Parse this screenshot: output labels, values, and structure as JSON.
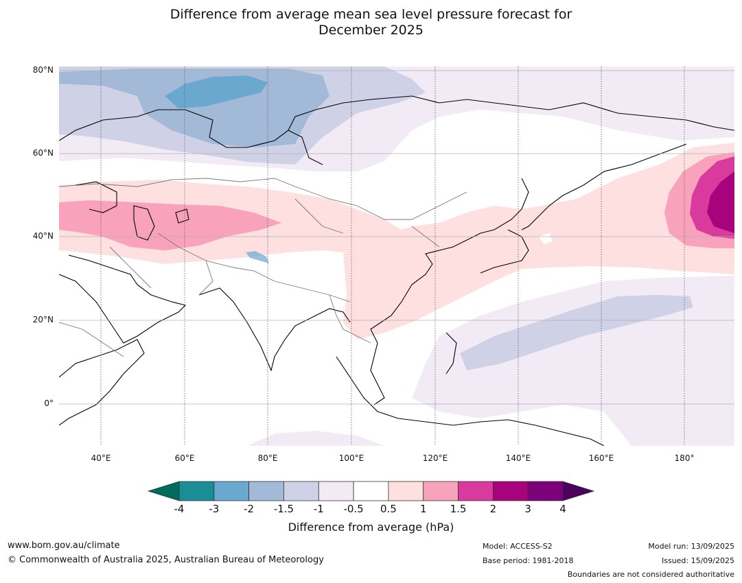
{
  "title_line1": "Difference from average mean sea level pressure forecast for",
  "title_line2": "December 2025",
  "map": {
    "lat_labels": [
      "80°N",
      "60°N",
      "40°N",
      "20°N",
      "0°"
    ],
    "lon_labels": [
      "40°E",
      "60°E",
      "80°E",
      "100°E",
      "120°E",
      "140°E",
      "160°E",
      "180°"
    ],
    "anomaly_regions": [
      {
        "name": "barents-sea-negative",
        "level": -2
      },
      {
        "name": "arctic-negative",
        "level": -1.5
      },
      {
        "name": "siberia-negative",
        "level": -1
      },
      {
        "name": "central-asia-positive",
        "level": 1
      },
      {
        "name": "caspian-positive",
        "level": 1.5
      },
      {
        "name": "china-positive",
        "level": 0.5
      },
      {
        "name": "north-pacific-positive",
        "level": 3
      },
      {
        "name": "western-pacific-negative",
        "level": -1.5
      },
      {
        "name": "tropical-pacific-negative",
        "level": -1
      }
    ]
  },
  "colorbar": {
    "ticks": [
      "-4",
      "-3",
      "-2",
      "-1.5",
      "-1",
      "-0.5",
      "0.5",
      "1",
      "1.5",
      "2",
      "3",
      "4"
    ],
    "colors": [
      "#1a8d96",
      "#6aa8d0",
      "#a3b9d8",
      "#cfd1e6",
      "#f2ebf5",
      "#ffffff",
      "#fde0df",
      "#f9a2bc",
      "#d93a9e",
      "#a8027c",
      "#7b0079"
    ],
    "extend_low_color": "#006a5d",
    "extend_high_color": "#4e005f",
    "label": "Difference from average (hPa)"
  },
  "footer": {
    "website": "www.bom.gov.au/climate",
    "copyright": "© Commonwealth of Australia 2025, Australian Bureau of Meteorology",
    "model": "Model: ACCESS-S2",
    "base_period": "Base period: 1981-2018",
    "model_run": "Model run: 13/09/2025",
    "issued": "Issued: 15/09/2025",
    "boundaries_note": "Boundaries are not considered authoritative"
  }
}
